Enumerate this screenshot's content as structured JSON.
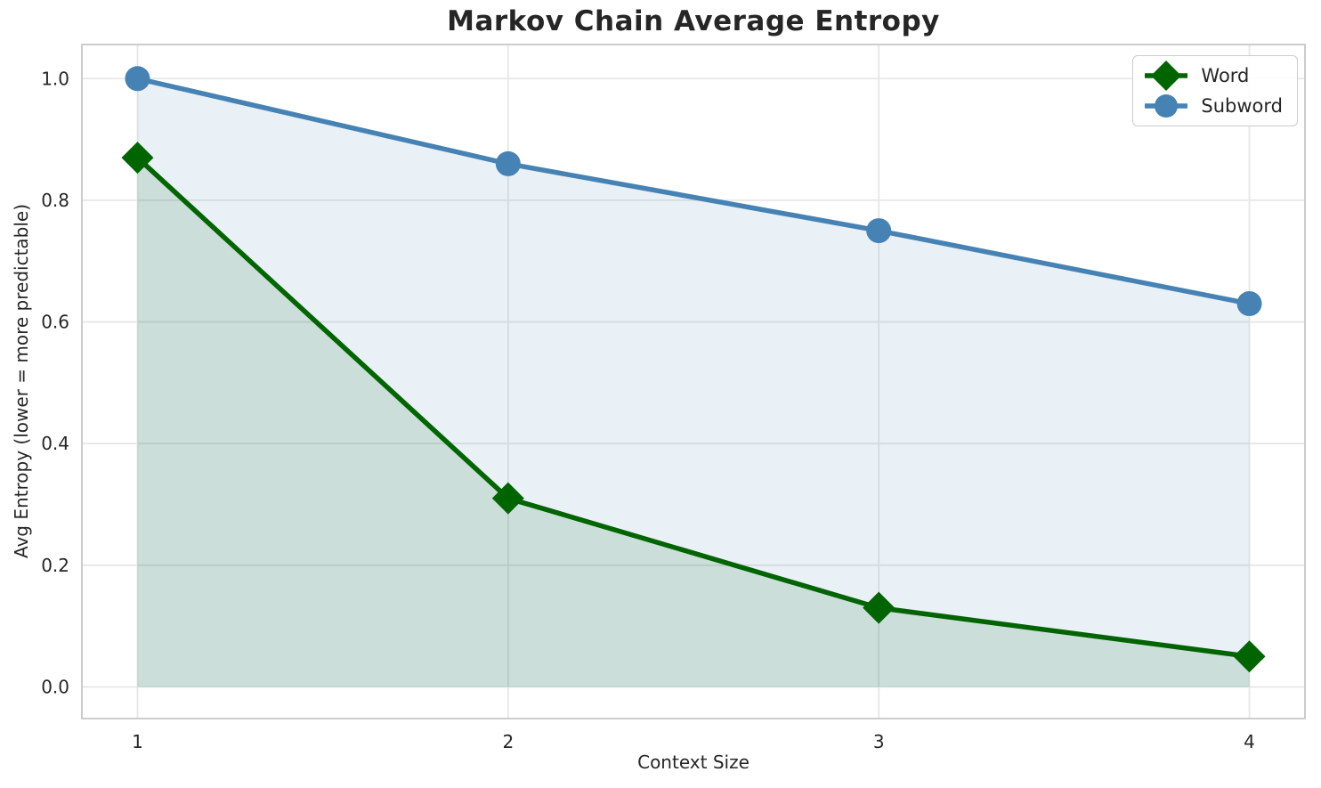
{
  "chart_data": {
    "type": "line",
    "title": "Markov Chain Average Entropy",
    "xlabel": "Context Size",
    "ylabel": "Avg Entropy (lower = more predictable)",
    "x": [
      1,
      2,
      3,
      4
    ],
    "xticks": [
      "1",
      "2",
      "3",
      "4"
    ],
    "xtick_values": [
      1,
      2,
      3,
      4
    ],
    "yticks": [
      "0.0",
      "0.2",
      "0.4",
      "0.6",
      "0.8",
      "1.0"
    ],
    "ytick_values": [
      0.0,
      0.2,
      0.4,
      0.6,
      0.8,
      1.0
    ],
    "xlim": [
      0.85,
      4.15
    ],
    "ylim": [
      -0.052,
      1.056
    ],
    "grid": true,
    "legend_position": "upper-right",
    "area_fill_baseline": 0,
    "series": [
      {
        "name": "Word",
        "values": [
          0.87,
          0.31,
          0.13,
          0.05
        ],
        "color": "#006400",
        "marker": "diamond",
        "fill": "rgba(0,100,0,0.13)"
      },
      {
        "name": "Subword",
        "values": [
          1.0,
          0.86,
          0.75,
          0.63
        ],
        "color": "#4682B4",
        "marker": "circle",
        "fill": "rgba(70,130,180,0.12)"
      }
    ]
  },
  "styles": {
    "grid_color": "#e7e7e7",
    "spine_color": "#cccccc",
    "text_color": "#262626",
    "background": "#ffffff"
  }
}
